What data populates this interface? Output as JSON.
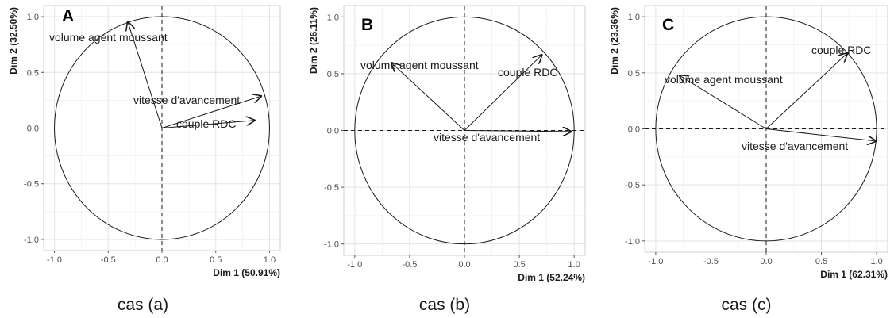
{
  "chart_data": [
    {
      "type": "scatter",
      "panel_label": "A",
      "caption": "cas (a)",
      "xlabel": "Dim 1 (50.91%)",
      "ylabel": "Dim 2 (32.50%)",
      "xlim": [
        -1.1,
        1.1
      ],
      "ylim": [
        -1.1,
        1.1
      ],
      "xticks": [
        "-1.0",
        "-0.5",
        "0.0",
        "0.5",
        "1.0"
      ],
      "yticks": [
        "-1.0",
        "-0.5",
        "0.0",
        "0.5",
        "1.0"
      ],
      "grid": true,
      "vectors": [
        {
          "label": "volume agent moussant",
          "x": -0.32,
          "y": 0.96
        },
        {
          "label": "vitesse d'avancement",
          "x": 0.93,
          "y": 0.29
        },
        {
          "label": "couple RDC",
          "x": 0.87,
          "y": 0.07
        }
      ]
    },
    {
      "type": "scatter",
      "panel_label": "B",
      "caption": "cas (b)",
      "xlabel": "Dim 1 (52.24%)",
      "ylabel": "Dim 2 (26.11%)",
      "xlim": [
        -1.1,
        1.1
      ],
      "ylim": [
        -1.1,
        1.1
      ],
      "xticks": [
        "-1.0",
        "-0.5",
        "0.0",
        "0.5",
        "1.0"
      ],
      "yticks": [
        "-1.0",
        "-0.5",
        "0.0",
        "0.5",
        "1.0"
      ],
      "grid": true,
      "vectors": [
        {
          "label": "volume agent moussant",
          "x": -0.67,
          "y": 0.6
        },
        {
          "label": "couple RDC",
          "x": 0.71,
          "y": 0.67
        },
        {
          "label": "vitesse d'avancement",
          "x": 0.98,
          "y": -0.01
        }
      ]
    },
    {
      "type": "scatter",
      "panel_label": "C",
      "caption": "cas (c)",
      "xlabel": "Dim 1 (62.31%)",
      "ylabel": "Dim 2 (23.36%)",
      "xlim": [
        -1.1,
        1.1
      ],
      "ylim": [
        -1.1,
        1.1
      ],
      "xticks": [
        "-1.0",
        "-0.5",
        "0.0",
        "0.5",
        "1.0"
      ],
      "yticks": [
        "-1.0",
        "-0.5",
        "0.0",
        "0.5",
        "1.0"
      ],
      "grid": true,
      "vectors": [
        {
          "label": "volume agent moussant",
          "x": -0.79,
          "y": 0.48
        },
        {
          "label": "couple RDC",
          "x": 0.74,
          "y": 0.68
        },
        {
          "label": "vitesse d'avancement",
          "x": 1.0,
          "y": -0.11
        }
      ]
    }
  ]
}
